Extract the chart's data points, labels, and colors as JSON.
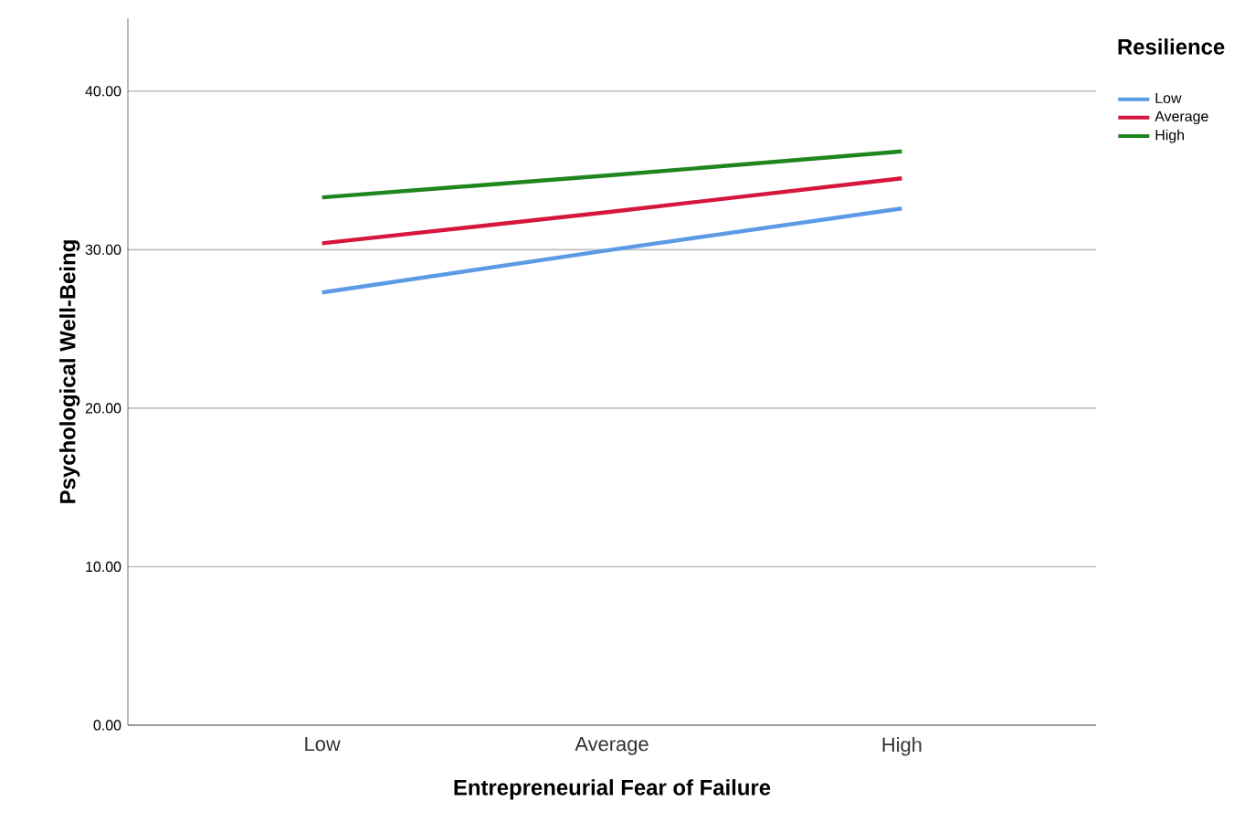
{
  "chart_data": {
    "type": "line",
    "xlabel": "Entrepreneurial Fear of Failure",
    "ylabel": "Psychological Well-Being",
    "legend_title": "Resilience",
    "categories": [
      "Low",
      "Average",
      "High"
    ],
    "series": [
      {
        "name": "Low",
        "color": "#5b9be6",
        "values": [
          27.3,
          30.0,
          32.6
        ]
      },
      {
        "name": "Average",
        "color": "#d6163c",
        "values": [
          30.4,
          32.4,
          34.5
        ]
      },
      {
        "name": "High",
        "color": "#1f861f",
        "values": [
          33.3,
          34.7,
          36.2
        ]
      }
    ],
    "ylim": [
      0,
      44.6
    ],
    "yticks": [
      {
        "value": 0,
        "label": "0.00"
      },
      {
        "value": 10,
        "label": "10.00"
      },
      {
        "value": 20,
        "label": "20.00"
      },
      {
        "value": 30,
        "label": "30.00"
      },
      {
        "value": 40,
        "label": "40.00"
      }
    ],
    "grid": "y",
    "legend": "top right",
    "marker": "none",
    "line_style": "solid"
  }
}
